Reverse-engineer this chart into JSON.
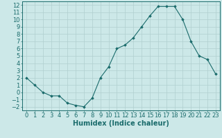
{
  "x": [
    0,
    1,
    2,
    3,
    4,
    5,
    6,
    7,
    8,
    9,
    10,
    11,
    12,
    13,
    14,
    15,
    16,
    17,
    18,
    19,
    20,
    21,
    22,
    23
  ],
  "y": [
    2,
    1,
    0,
    -0.5,
    -0.5,
    -1.5,
    -1.8,
    -2,
    -0.8,
    2,
    3.5,
    6,
    6.5,
    7.5,
    9,
    10.5,
    11.8,
    11.8,
    11.8,
    10,
    7,
    5,
    4.5,
    2.5
  ],
  "line_color": "#1a6b6b",
  "marker_color": "#1a6b6b",
  "bg_color": "#cce8e8",
  "grid_color": "#b0cfcf",
  "axis_color": "#1a6b6b",
  "xlabel": "Humidex (Indice chaleur)",
  "xlim": [
    -0.5,
    23.5
  ],
  "ylim": [
    -2.5,
    12.5
  ],
  "yticks": [
    -2,
    -1,
    0,
    1,
    2,
    3,
    4,
    5,
    6,
    7,
    8,
    9,
    10,
    11,
    12
  ],
  "xticks": [
    0,
    1,
    2,
    3,
    4,
    5,
    6,
    7,
    8,
    9,
    10,
    11,
    12,
    13,
    14,
    15,
    16,
    17,
    18,
    19,
    20,
    21,
    22,
    23
  ],
  "font_color": "#1a6b6b",
  "fontsize": 6.0,
  "xlabel_fontsize": 7.0
}
